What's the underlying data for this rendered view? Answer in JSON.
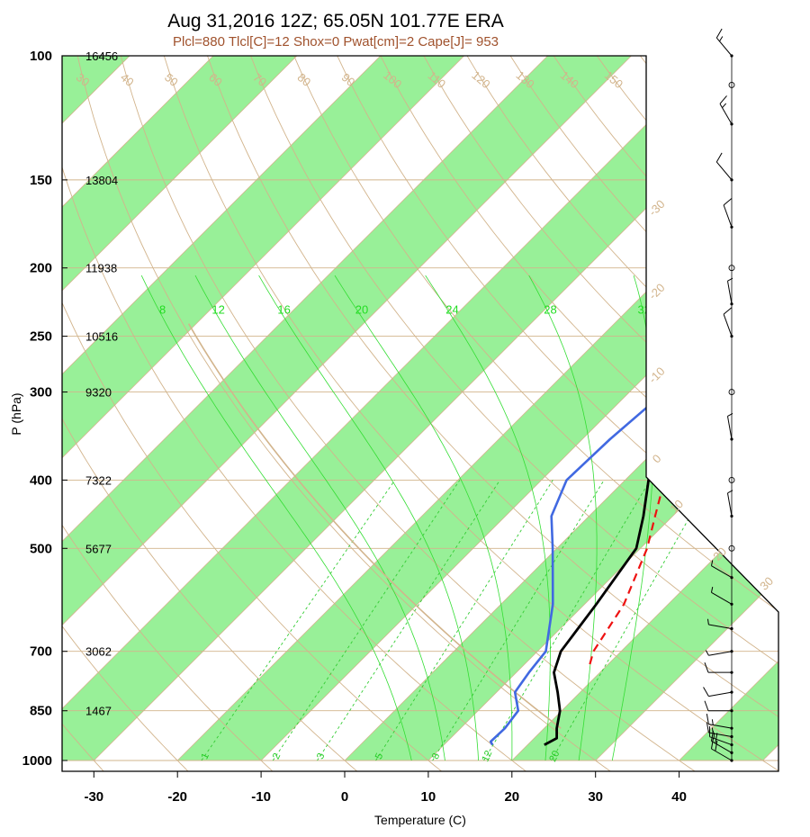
{
  "chart_data": {
    "type": "line",
    "title": "Aug 31,2016 12Z; 65.05N 101.77E ERA",
    "subtitle": "Plcl=880 Tlcl[C]=12 Shox=0 Pwat[cm]=2 Cape[J]= 953",
    "xlabel": "Temperature (C)",
    "ylabel": "P (hPa)",
    "xlim": [
      -34,
      52
    ],
    "ylim": [
      1000,
      100
    ],
    "y_scale": "log",
    "x_ticks": [
      -30,
      -20,
      -10,
      0,
      10,
      20,
      30,
      40
    ],
    "pressure_levels": [
      {
        "p": 100,
        "label": "100",
        "height": "16456"
      },
      {
        "p": 150,
        "label": "150",
        "height": "13804"
      },
      {
        "p": 200,
        "label": "200",
        "height": "11938"
      },
      {
        "p": 250,
        "label": "250",
        "height": "10516"
      },
      {
        "p": 300,
        "label": "300",
        "height": "9320"
      },
      {
        "p": 400,
        "label": "400",
        "height": "7322"
      },
      {
        "p": 500,
        "label": "500",
        "height": "5677"
      },
      {
        "p": 700,
        "label": "700",
        "height": "3062"
      },
      {
        "p": 850,
        "label": "850",
        "height": "1467"
      },
      {
        "p": 1000,
        "label": "1000",
        "height": ""
      }
    ],
    "temperature_profile": {
      "color": "#000000",
      "points": [
        {
          "p": 950,
          "t": 22.0
        },
        {
          "p": 930,
          "t": 22.7
        },
        {
          "p": 900,
          "t": 21.5
        },
        {
          "p": 850,
          "t": 19.8
        },
        {
          "p": 800,
          "t": 17.3
        },
        {
          "p": 750,
          "t": 14.5
        },
        {
          "p": 700,
          "t": 12.8
        },
        {
          "p": 600,
          "t": 11.4
        },
        {
          "p": 500,
          "t": 9.5
        },
        {
          "p": 450,
          "t": 6.5
        },
        {
          "p": 400,
          "t": 2.8
        },
        {
          "p": 350,
          "t": -1.5
        },
        {
          "p": 300,
          "t": -4.7
        },
        {
          "p": 275,
          "t": -6.2
        },
        {
          "p": 250,
          "t": -7.0
        },
        {
          "p": 240,
          "t": -6.9
        },
        {
          "p": 225,
          "t": -6.3
        },
        {
          "p": 200,
          "t": -1.8
        },
        {
          "p": 175,
          "t": 5.8
        },
        {
          "p": 150,
          "t": 11.5
        },
        {
          "p": 125,
          "t": 19.0
        },
        {
          "p": 100,
          "t": 25.4
        }
      ]
    },
    "dewpoint_profile": {
      "color": "#4169e1",
      "points": [
        {
          "p": 950,
          "t": 15.8
        },
        {
          "p": 940,
          "t": 15.2
        },
        {
          "p": 900,
          "t": 15.3
        },
        {
          "p": 850,
          "t": 14.8
        },
        {
          "p": 800,
          "t": 12.2
        },
        {
          "p": 750,
          "t": 11.5
        },
        {
          "p": 700,
          "t": 11.0
        },
        {
          "p": 600,
          "t": 6.2
        },
        {
          "p": 500,
          "t": -0.5
        },
        {
          "p": 450,
          "t": -4.5
        },
        {
          "p": 400,
          "t": -7.0
        },
        {
          "p": 350,
          "t": -6.7
        },
        {
          "p": 300,
          "t": -5.8
        },
        {
          "p": 250,
          "t": -8.0
        },
        {
          "p": 225,
          "t": -9.8
        },
        {
          "p": 200,
          "t": -10.2
        },
        {
          "p": 175,
          "t": -14.5
        },
        {
          "p": 150,
          "t": -16.8
        },
        {
          "p": 125,
          "t": -13.5
        },
        {
          "p": 100,
          "t": -8.0
        }
      ]
    },
    "parcel_profile": {
      "color": "#ee1111",
      "style": "dashed",
      "points": [
        {
          "p": 730,
          "t": 17.8
        },
        {
          "p": 700,
          "t": 16.7
        },
        {
          "p": 600,
          "t": 14.7
        },
        {
          "p": 500,
          "t": 10.8
        },
        {
          "p": 450,
          "t": 7.9
        },
        {
          "p": 400,
          "t": 4.7
        },
        {
          "p": 350,
          "t": 0.5
        },
        {
          "p": 300,
          "t": -3.3
        },
        {
          "p": 250,
          "t": -6.2
        }
      ]
    },
    "isotherm_labels": [
      "-30",
      "-20",
      "-10",
      "0",
      "10",
      "20",
      "30"
    ],
    "isotherm_label_values": [
      -30,
      -20,
      -10,
      0,
      10,
      20,
      30
    ],
    "dry_adiabat_labels": [
      "-30",
      "-20",
      "-10",
      "0",
      "10",
      "20",
      "30",
      "40",
      "50",
      "60",
      "70",
      "80",
      "90",
      "100",
      "110",
      "120",
      "130",
      "140",
      "150",
      "160"
    ],
    "dry_adiabat_values": [
      -30,
      -20,
      -10,
      0,
      10,
      20,
      30,
      40,
      50,
      60,
      70,
      80,
      90,
      100,
      110,
      120,
      130,
      140,
      150,
      160
    ],
    "moist_adiabat_labels": [
      "8",
      "12",
      "16",
      "20",
      "24",
      "28",
      "32"
    ],
    "moist_adiabat_values": [
      8,
      12,
      16,
      20,
      24,
      28,
      32
    ],
    "mixing_ratio_labels": [
      "1",
      "2",
      "3",
      "5",
      "8",
      "12",
      "20"
    ],
    "mixing_ratio_values": [
      1,
      2,
      3,
      5,
      8,
      12,
      20
    ],
    "colors": {
      "green_band": "#98f098",
      "isotherm": "#d2b48c",
      "dry_adiabat": "#d2b48c",
      "moist_adiabat": "#33dd33",
      "mixing_ratio": "#33cc33",
      "environment_curve": "#d2b48c"
    },
    "wind_barbs": {
      "points": [
        {
          "p": 1000,
          "speed": 20,
          "dir": 300
        },
        {
          "p": 975,
          "speed": 20,
          "dir": 300
        },
        {
          "p": 950,
          "speed": 15,
          "dir": 290
        },
        {
          "p": 925,
          "speed": 15,
          "dir": 280
        },
        {
          "p": 900,
          "speed": 15,
          "dir": 280
        },
        {
          "p": 850,
          "speed": 10,
          "dir": 270
        },
        {
          "p": 800,
          "speed": 10,
          "dir": 260
        },
        {
          "p": 750,
          "speed": 10,
          "dir": 270
        },
        {
          "p": 700,
          "speed": 5,
          "dir": 260
        },
        {
          "p": 650,
          "speed": 5,
          "dir": 280
        },
        {
          "p": 600,
          "speed": 5,
          "dir": 300
        },
        {
          "p": 550,
          "speed": 5,
          "dir": 300
        },
        {
          "p": 500,
          "speed": 0,
          "dir": 0
        },
        {
          "p": 450,
          "speed": 5,
          "dir": 350
        },
        {
          "p": 400,
          "speed": 0,
          "dir": 0
        },
        {
          "p": 350,
          "speed": 5,
          "dir": 350
        },
        {
          "p": 300,
          "speed": 0,
          "dir": 0
        },
        {
          "p": 250,
          "speed": 10,
          "dir": 340
        },
        {
          "p": 225,
          "speed": 5,
          "dir": 350
        },
        {
          "p": 200,
          "speed": 0,
          "dir": 0
        },
        {
          "p": 175,
          "speed": 10,
          "dir": 340
        },
        {
          "p": 150,
          "speed": 10,
          "dir": 320
        },
        {
          "p": 125,
          "speed": 15,
          "dir": 330
        },
        {
          "p": 110,
          "speed": 0,
          "dir": 0
        },
        {
          "p": 100,
          "speed": 15,
          "dir": 320
        }
      ]
    }
  }
}
